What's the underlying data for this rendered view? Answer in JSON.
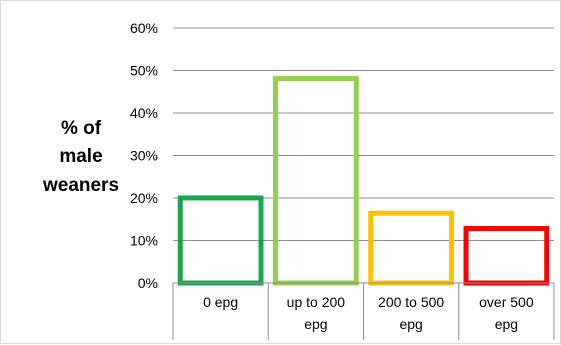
{
  "chart_data": {
    "type": "bar",
    "title": "",
    "xlabel": "",
    "ylabel_lines": [
      "% of",
      "male",
      "weaners"
    ],
    "ylim": [
      0,
      60
    ],
    "y_ticks": [
      {
        "value": 0,
        "label": "0%"
      },
      {
        "value": 10,
        "label": "10%"
      },
      {
        "value": 20,
        "label": "20%"
      },
      {
        "value": 30,
        "label": "30%"
      },
      {
        "value": 40,
        "label": "40%"
      },
      {
        "value": 50,
        "label": "50%"
      },
      {
        "value": 60,
        "label": "60%"
      }
    ],
    "grid": true,
    "bar_fill": "none",
    "categories": [
      {
        "lines": [
          "0 epg"
        ],
        "value": 20.6,
        "color": "#1aa64a"
      },
      {
        "lines": [
          "up to 200",
          "epg"
        ],
        "value": 48.7,
        "color": "#92d050"
      },
      {
        "lines": [
          "200 to 500",
          "epg"
        ],
        "value": 17.0,
        "color": "#ffc000"
      },
      {
        "lines": [
          "over 500",
          "epg"
        ],
        "value": 13.4,
        "color": "#ff0000"
      }
    ]
  }
}
